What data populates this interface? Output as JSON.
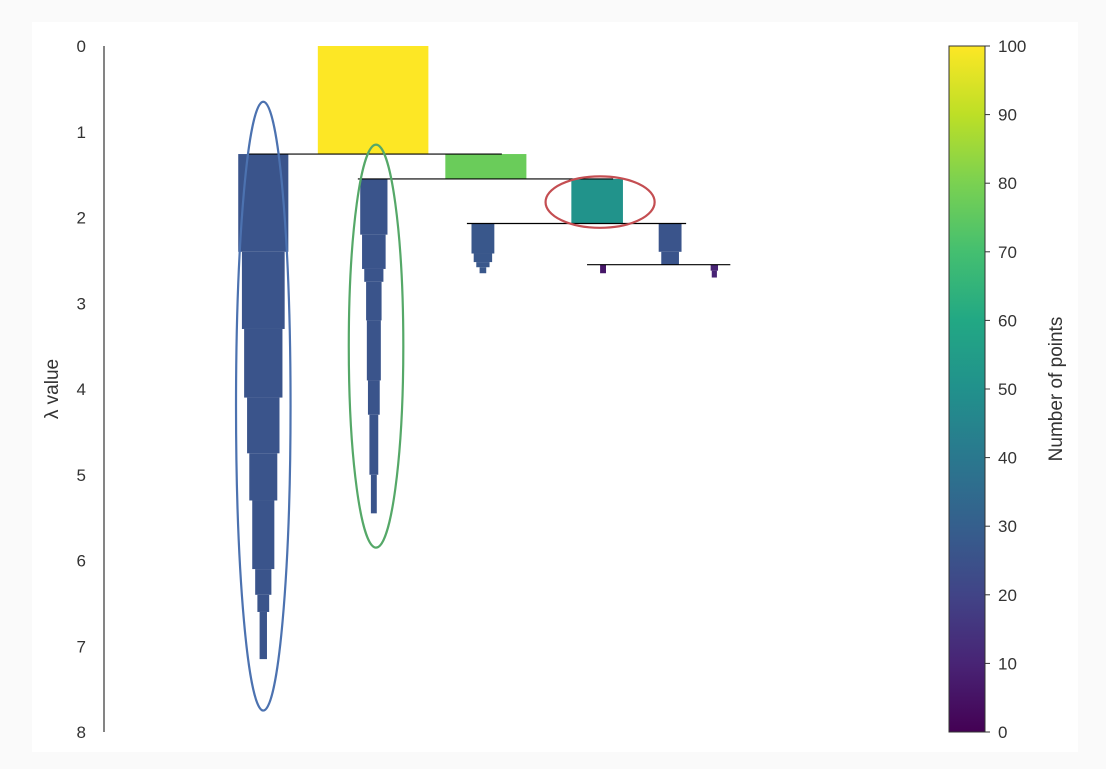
{
  "chart_data": {
    "type": "condensed-tree",
    "title": "",
    "ylabel": "λ value",
    "ylim": [
      0,
      8
    ],
    "yticks": [
      "0",
      "1",
      "2",
      "3",
      "4",
      "5",
      "6",
      "7",
      "8"
    ],
    "colorbar": {
      "label": "Number of points",
      "range": [
        0,
        100
      ],
      "ticks": [
        "0",
        "10",
        "20",
        "30",
        "40",
        "50",
        "60",
        "70",
        "80",
        "90",
        "100"
      ],
      "colormap": "viridis"
    },
    "x_domain": [
      0,
      100
    ],
    "branches": [
      {
        "name": "root",
        "x": 30,
        "color_value": 100,
        "lambda_birth": 0,
        "lambda_death": 1.26,
        "profile": [
          [
            0,
            1.26,
            15
          ]
        ]
      },
      {
        "name": "cluster-blue",
        "x": 15.1,
        "color_value": 26,
        "lambda_birth": 1.26,
        "lambda_death": 7.15,
        "profile": [
          [
            1.26,
            2.4,
            6.8
          ],
          [
            2.4,
            3.3,
            5.8
          ],
          [
            3.3,
            4.1,
            5.2
          ],
          [
            4.1,
            4.75,
            4.4
          ],
          [
            4.75,
            5.3,
            3.8
          ],
          [
            5.3,
            6.1,
            3.0
          ],
          [
            6.1,
            6.4,
            2.2
          ],
          [
            6.4,
            6.6,
            1.6
          ],
          [
            6.6,
            7.15,
            1.0
          ]
        ]
      },
      {
        "name": "merge-1",
        "x": 45.3,
        "color_value": 77,
        "lambda_birth": 1.26,
        "lambda_death": 1.55,
        "profile": [
          [
            1.26,
            1.55,
            11
          ]
        ]
      },
      {
        "name": "cluster-green",
        "x": 30.1,
        "color_value": 26,
        "lambda_birth": 1.55,
        "lambda_death": 5.45,
        "profile": [
          [
            1.55,
            2.2,
            3.7
          ],
          [
            2.2,
            2.6,
            3.2
          ],
          [
            2.6,
            2.75,
            2.6
          ],
          [
            2.75,
            3.2,
            2.1
          ],
          [
            3.2,
            3.9,
            1.9
          ],
          [
            3.9,
            4.3,
            1.6
          ],
          [
            4.3,
            5.0,
            1.2
          ],
          [
            5.0,
            5.45,
            0.8
          ]
        ]
      },
      {
        "name": "cluster-red",
        "x": 60.4,
        "color_value": 51,
        "lambda_birth": 1.55,
        "lambda_death": 2.07,
        "profile": [
          [
            1.55,
            2.07,
            7
          ]
        ]
      },
      {
        "name": "leaf-a",
        "x": 44.9,
        "color_value": 27,
        "lambda_birth": 2.07,
        "lambda_death": 2.65,
        "profile": [
          [
            2.07,
            2.42,
            3.1
          ],
          [
            2.42,
            2.52,
            2.5
          ],
          [
            2.52,
            2.58,
            1.8
          ],
          [
            2.58,
            2.65,
            0.9
          ]
        ]
      },
      {
        "name": "merge-2",
        "x": 70.3,
        "color_value": 26,
        "lambda_birth": 2.07,
        "lambda_death": 2.55,
        "profile": [
          [
            2.07,
            2.4,
            3.1
          ],
          [
            2.4,
            2.55,
            2.4
          ]
        ]
      },
      {
        "name": "leaf-b",
        "x": 61.2,
        "color_value": 6,
        "lambda_birth": 2.55,
        "lambda_death": 2.65,
        "profile": [
          [
            2.55,
            2.65,
            0.8
          ]
        ]
      },
      {
        "name": "leaf-c",
        "x": 76.3,
        "color_value": 10,
        "lambda_birth": 2.55,
        "lambda_death": 2.7,
        "profile": [
          [
            2.55,
            2.62,
            1.0
          ],
          [
            2.62,
            2.7,
            0.7
          ]
        ]
      }
    ],
    "splits": [
      {
        "name": "split-root",
        "lambda": 1.26,
        "x_from": 15.1,
        "x_to": 45.3
      },
      {
        "name": "split-1",
        "lambda": 1.55,
        "x_from": 30.1,
        "x_to": 60.4
      },
      {
        "name": "split-2",
        "lambda": 2.07,
        "x_from": 44.9,
        "x_to": 70.3
      },
      {
        "name": "split-3",
        "lambda": 2.55,
        "x_from": 61.2,
        "x_to": 76.3
      }
    ],
    "highlights": [
      {
        "name": "blue-ellipse",
        "x": 15.1,
        "lambda_center": 4.2,
        "rx": 3.7,
        "lambda_radius": 3.55,
        "color": "#4c72b0"
      },
      {
        "name": "green-ellipse",
        "x": 30.4,
        "lambda_center": 3.5,
        "rx": 3.7,
        "lambda_radius": 2.35,
        "color": "#55a868"
      },
      {
        "name": "red-ellipse",
        "x": 60.8,
        "lambda_center": 1.82,
        "rx": 7.4,
        "lambda_radius": 0.3,
        "color": "#c44e52"
      }
    ]
  }
}
